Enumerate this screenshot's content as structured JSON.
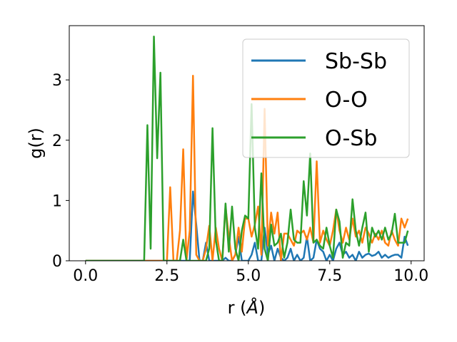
{
  "chart_data": {
    "type": "line",
    "xlabel": "r (",
    "xlabel_unit": "Å",
    "xlabel_close": ")",
    "ylabel": "g(r)",
    "xlim": [
      -0.5,
      10.4
    ],
    "ylim": [
      0,
      3.9
    ],
    "xticks": [
      0.0,
      2.5,
      5.0,
      7.5,
      10.0
    ],
    "xtick_labels": [
      "0.0",
      "2.5",
      "5.0",
      "7.5",
      "10.0"
    ],
    "yticks": [
      0,
      1,
      2,
      3
    ],
    "ytick_labels": [
      "0",
      "1",
      "2",
      "3"
    ],
    "grid": false,
    "legend_position": "top-right",
    "series": [
      {
        "name": "Sb-Sb",
        "color": "#1f77b4",
        "points": [
          [
            0.0,
            0
          ],
          [
            3.0,
            0
          ],
          [
            3.1,
            0
          ],
          [
            3.2,
            0
          ],
          [
            3.3,
            1.15
          ],
          [
            3.4,
            0.6
          ],
          [
            3.5,
            0
          ],
          [
            3.6,
            0
          ],
          [
            3.7,
            0.3
          ],
          [
            3.8,
            0
          ],
          [
            3.9,
            0
          ],
          [
            4.0,
            0
          ],
          [
            4.1,
            0
          ],
          [
            4.2,
            0
          ],
          [
            4.3,
            0.05
          ],
          [
            4.4,
            0
          ],
          [
            4.5,
            0
          ],
          [
            4.6,
            0.1
          ],
          [
            4.7,
            0.4
          ],
          [
            4.8,
            0
          ],
          [
            4.9,
            0
          ],
          [
            5.0,
            0
          ],
          [
            5.1,
            0.1
          ],
          [
            5.2,
            0.3
          ],
          [
            5.3,
            0
          ],
          [
            5.4,
            0
          ],
          [
            5.5,
            0.55
          ],
          [
            5.6,
            0.1
          ],
          [
            5.7,
            0.25
          ],
          [
            5.8,
            0
          ],
          [
            5.9,
            0.2
          ],
          [
            6.0,
            0.05
          ],
          [
            6.1,
            0
          ],
          [
            6.2,
            0.05
          ],
          [
            6.3,
            0.2
          ],
          [
            6.4,
            0
          ],
          [
            6.5,
            0.1
          ],
          [
            6.6,
            0
          ],
          [
            6.7,
            0.05
          ],
          [
            6.8,
            0.4
          ],
          [
            6.9,
            0
          ],
          [
            7.0,
            0.05
          ],
          [
            7.1,
            0.35
          ],
          [
            7.2,
            0.2
          ],
          [
            7.3,
            0.15
          ],
          [
            7.4,
            0
          ],
          [
            7.5,
            0.1
          ],
          [
            7.6,
            0
          ],
          [
            7.7,
            0.2
          ],
          [
            7.8,
            0.3
          ],
          [
            7.9,
            0.1
          ],
          [
            8.0,
            0.15
          ],
          [
            8.1,
            0.05
          ],
          [
            8.2,
            0.1
          ],
          [
            8.3,
            0
          ],
          [
            8.4,
            0.15
          ],
          [
            8.5,
            0.05
          ],
          [
            8.6,
            0.1
          ],
          [
            8.7,
            0.12
          ],
          [
            8.8,
            0.08
          ],
          [
            8.9,
            0.1
          ],
          [
            9.0,
            0.15
          ],
          [
            9.1,
            0.05
          ],
          [
            9.2,
            0.1
          ],
          [
            9.3,
            0.05
          ],
          [
            9.4,
            0.08
          ],
          [
            9.5,
            0.1
          ],
          [
            9.6,
            0.1
          ],
          [
            9.7,
            0.05
          ],
          [
            9.8,
            0.4
          ],
          [
            9.9,
            0.25
          ]
        ]
      },
      {
        "name": "O-O",
        "color": "#ff7f0e",
        "points": [
          [
            0.0,
            0
          ],
          [
            2.4,
            0
          ],
          [
            2.5,
            0
          ],
          [
            2.6,
            1.22
          ],
          [
            2.7,
            0
          ],
          [
            2.8,
            0
          ],
          [
            2.9,
            0.5
          ],
          [
            3.0,
            1.85
          ],
          [
            3.1,
            0
          ],
          [
            3.2,
            0.5
          ],
          [
            3.3,
            3.07
          ],
          [
            3.4,
            0.1
          ],
          [
            3.5,
            0
          ],
          [
            3.6,
            0
          ],
          [
            3.7,
            0.2
          ],
          [
            3.8,
            0.58
          ],
          [
            3.9,
            0
          ],
          [
            4.0,
            0.55
          ],
          [
            4.1,
            0.2
          ],
          [
            4.2,
            0
          ],
          [
            4.3,
            0.9
          ],
          [
            4.4,
            0.4
          ],
          [
            4.5,
            0
          ],
          [
            4.6,
            0.1
          ],
          [
            4.7,
            0.55
          ],
          [
            4.8,
            0.15
          ],
          [
            4.9,
            0.7
          ],
          [
            5.0,
            0.7
          ],
          [
            5.1,
            0.4
          ],
          [
            5.2,
            0.6
          ],
          [
            5.3,
            0.9
          ],
          [
            5.4,
            0.1
          ],
          [
            5.5,
            2.52
          ],
          [
            5.6,
            0.25
          ],
          [
            5.7,
            0.8
          ],
          [
            5.8,
            0.45
          ],
          [
            5.9,
            0.8
          ],
          [
            6.0,
            0
          ],
          [
            6.1,
            0.45
          ],
          [
            6.2,
            0.45
          ],
          [
            6.3,
            0.35
          ],
          [
            6.4,
            0.25
          ],
          [
            6.5,
            0.5
          ],
          [
            6.6,
            0.45
          ],
          [
            6.7,
            0.5
          ],
          [
            6.8,
            0.35
          ],
          [
            6.9,
            0.55
          ],
          [
            7.0,
            0.3
          ],
          [
            7.1,
            1.65
          ],
          [
            7.2,
            0.3
          ],
          [
            7.3,
            0.5
          ],
          [
            7.4,
            0.35
          ],
          [
            7.5,
            0.25
          ],
          [
            7.6,
            0.5
          ],
          [
            7.7,
            0.85
          ],
          [
            7.8,
            0.5
          ],
          [
            7.9,
            0.3
          ],
          [
            8.0,
            0.55
          ],
          [
            8.1,
            0.35
          ],
          [
            8.2,
            0.7
          ],
          [
            8.3,
            0.4
          ],
          [
            8.4,
            0.5
          ],
          [
            8.5,
            0.3
          ],
          [
            8.6,
            0.55
          ],
          [
            8.7,
            0.45
          ],
          [
            8.8,
            0.3
          ],
          [
            8.9,
            0.45
          ],
          [
            9.0,
            0.35
          ],
          [
            9.1,
            0.5
          ],
          [
            9.2,
            0.3
          ],
          [
            9.3,
            0.25
          ],
          [
            9.4,
            0.5
          ],
          [
            9.5,
            0.35
          ],
          [
            9.6,
            0.25
          ],
          [
            9.7,
            0.7
          ],
          [
            9.8,
            0.55
          ],
          [
            9.9,
            0.7
          ]
        ]
      },
      {
        "name": "O-Sb",
        "color": "#2ca02c",
        "points": [
          [
            0.0,
            0
          ],
          [
            1.8,
            0
          ],
          [
            1.9,
            2.25
          ],
          [
            2.0,
            0.2
          ],
          [
            2.1,
            3.72
          ],
          [
            2.2,
            1.7
          ],
          [
            2.3,
            3.12
          ],
          [
            2.4,
            0
          ],
          [
            2.5,
            0
          ],
          [
            2.6,
            0
          ],
          [
            2.7,
            0
          ],
          [
            2.8,
            0
          ],
          [
            2.9,
            0
          ],
          [
            3.0,
            0.35
          ],
          [
            3.1,
            0
          ],
          [
            3.2,
            0
          ],
          [
            3.3,
            0
          ],
          [
            3.4,
            0
          ],
          [
            3.5,
            0
          ],
          [
            3.6,
            0
          ],
          [
            3.7,
            0
          ],
          [
            3.8,
            0.2
          ],
          [
            3.9,
            2.2
          ],
          [
            4.0,
            0.35
          ],
          [
            4.1,
            0
          ],
          [
            4.2,
            0
          ],
          [
            4.3,
            0.95
          ],
          [
            4.4,
            0.15
          ],
          [
            4.5,
            0.9
          ],
          [
            4.6,
            0.2
          ],
          [
            4.7,
            0
          ],
          [
            4.8,
            0.5
          ],
          [
            4.9,
            0.75
          ],
          [
            5.0,
            0.7
          ],
          [
            5.1,
            2.6
          ],
          [
            5.2,
            0.55
          ],
          [
            5.3,
            0.2
          ],
          [
            5.4,
            1.45
          ],
          [
            5.5,
            0.2
          ],
          [
            5.6,
            0
          ],
          [
            5.7,
            0.6
          ],
          [
            5.8,
            0.25
          ],
          [
            5.9,
            0.3
          ],
          [
            6.0,
            0.45
          ],
          [
            6.1,
            0.05
          ],
          [
            6.2,
            0.3
          ],
          [
            6.3,
            0.85
          ],
          [
            6.4,
            0.35
          ],
          [
            6.5,
            0.3
          ],
          [
            6.6,
            0.3
          ],
          [
            6.7,
            1.32
          ],
          [
            6.8,
            0.75
          ],
          [
            6.9,
            1.78
          ],
          [
            7.0,
            0.3
          ],
          [
            7.1,
            0.35
          ],
          [
            7.2,
            0.25
          ],
          [
            7.3,
            0.2
          ],
          [
            7.4,
            0.55
          ],
          [
            7.5,
            0.25
          ],
          [
            7.6,
            0.05
          ],
          [
            7.7,
            0.85
          ],
          [
            7.8,
            0.65
          ],
          [
            7.9,
            0.05
          ],
          [
            8.0,
            0.3
          ],
          [
            8.1,
            0.25
          ],
          [
            8.2,
            1.02
          ],
          [
            8.3,
            0.5
          ],
          [
            8.4,
            0.25
          ],
          [
            8.5,
            0.55
          ],
          [
            8.6,
            0.8
          ],
          [
            8.7,
            0.15
          ],
          [
            8.8,
            0.55
          ],
          [
            8.9,
            0.4
          ],
          [
            9.0,
            0.5
          ],
          [
            9.1,
            0.35
          ],
          [
            9.2,
            0.55
          ],
          [
            9.3,
            0.35
          ],
          [
            9.4,
            0.45
          ],
          [
            9.5,
            0.78
          ],
          [
            9.6,
            0.3
          ],
          [
            9.7,
            0.3
          ],
          [
            9.8,
            0.3
          ],
          [
            9.9,
            0.5
          ]
        ]
      }
    ]
  }
}
